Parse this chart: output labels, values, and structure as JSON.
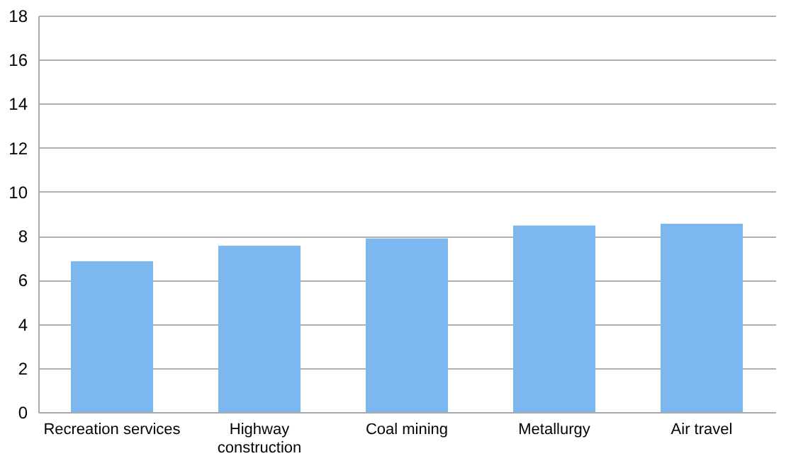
{
  "chart_data": {
    "type": "bar",
    "categories": [
      "Recreation services",
      "Highway construction",
      "Coal mining",
      "Metallurgy",
      "Air travel"
    ],
    "values": [
      6.85,
      7.55,
      7.88,
      8.47,
      8.55
    ],
    "color": "#7db7ef",
    "ylim": [
      0,
      18
    ],
    "yticks": [
      0,
      2,
      4,
      6,
      8,
      10,
      12,
      14,
      16,
      18
    ],
    "grid": "y"
  }
}
